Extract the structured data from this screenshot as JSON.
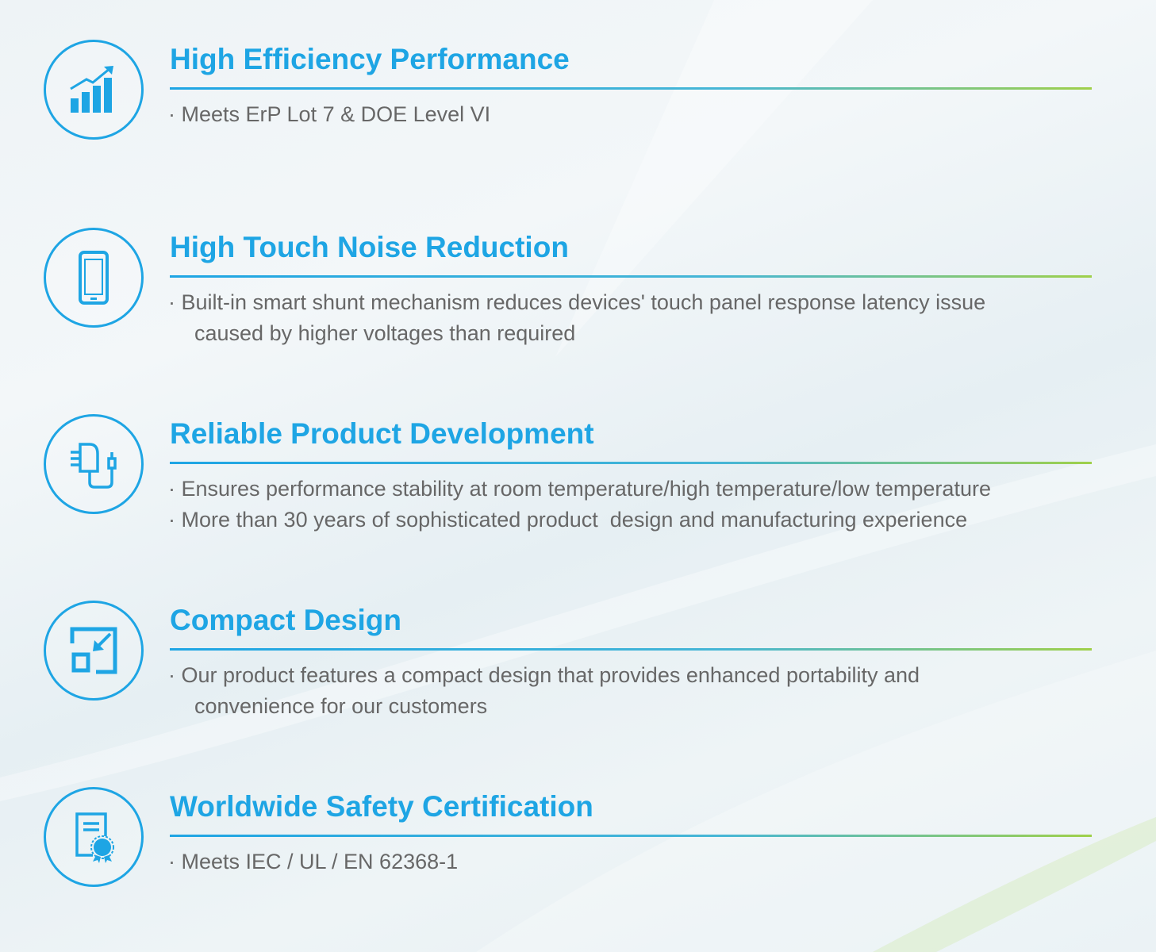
{
  "colors": {
    "accent": "#1ea5e4",
    "text": "#676767",
    "rule_end": "#9fd04a"
  },
  "features": [
    {
      "icon": "bar-chart-growth-icon",
      "title": "High Efficiency Performance",
      "bullets": [
        "· Meets ErP Lot 7 & DOE Level VI"
      ]
    },
    {
      "icon": "smartphone-icon",
      "title": "High Touch Noise Reduction",
      "bullets": [
        "· Built-in smart shunt mechanism reduces devices' touch panel response latency issue\n  caused by higher voltages than required"
      ]
    },
    {
      "icon": "power-adapter-icon",
      "title": "Reliable Product Development",
      "bullets": [
        "· Ensures performance stability at room temperature/high temperature/low temperature",
        "· More than 30 years of sophisticated product  design and manufacturing experience"
      ]
    },
    {
      "icon": "compact-resize-icon",
      "title": "Compact Design",
      "bullets": [
        "· Our product features a compact design that provides enhanced portability and\n  convenience for our customers"
      ]
    },
    {
      "icon": "certificate-icon",
      "title": "Worldwide Safety Certification",
      "bullets": [
        "· Meets IEC / UL / EN 62368-1"
      ]
    }
  ]
}
